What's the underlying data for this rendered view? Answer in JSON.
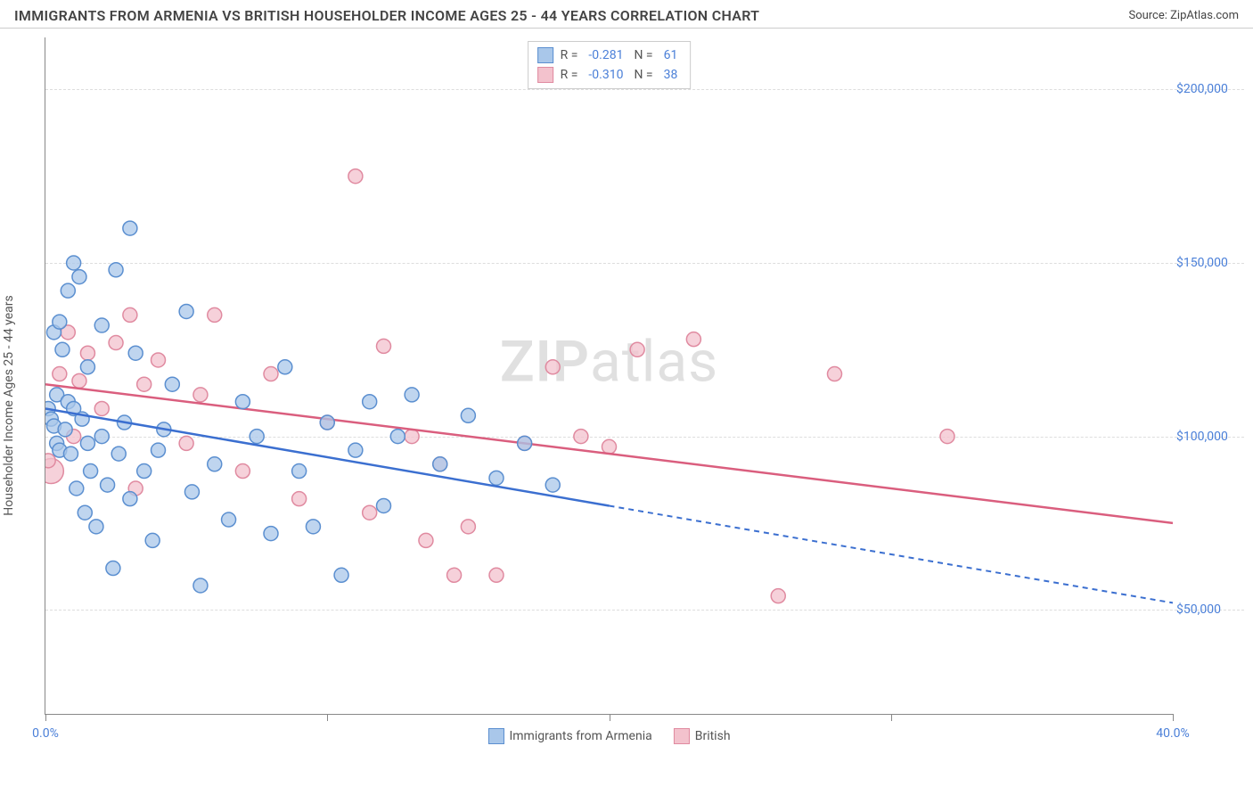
{
  "header": {
    "title": "IMMIGRANTS FROM ARMENIA VS BRITISH HOUSEHOLDER INCOME AGES 25 - 44 YEARS CORRELATION CHART",
    "source_prefix": "Source: ",
    "source_name": "ZipAtlas.com"
  },
  "chart": {
    "type": "scatter",
    "y_axis_label": "Householder Income Ages 25 - 44 years",
    "watermark_bold": "ZIP",
    "watermark_rest": "atlas",
    "xlim": [
      0,
      40
    ],
    "ylim": [
      20000,
      215000
    ],
    "x_ticks": [
      0,
      10,
      20,
      30,
      40
    ],
    "x_tick_labels_shown": {
      "0": "0.0%",
      "40": "40.0%"
    },
    "y_ticks": [
      50000,
      100000,
      150000,
      200000
    ],
    "y_tick_labels": [
      "$50,000",
      "$100,000",
      "$150,000",
      "$200,000"
    ],
    "grid_color": "#dddddd",
    "axis_color": "#888888",
    "background_color": "#ffffff",
    "series": {
      "armenia": {
        "label": "Immigrants from Armenia",
        "marker_fill": "#a9c7ea",
        "marker_stroke": "#5b8fd0",
        "line_color": "#3b6fd0",
        "r_value": "-0.281",
        "n_value": "61",
        "trend_solid": {
          "x1": 0,
          "y1": 108000,
          "x2": 20,
          "y2": 80000
        },
        "trend_dash": {
          "x1": 20,
          "y1": 80000,
          "x2": 40,
          "y2": 52000
        },
        "points": [
          [
            0.1,
            108000
          ],
          [
            0.2,
            105000
          ],
          [
            0.3,
            130000
          ],
          [
            0.3,
            103000
          ],
          [
            0.4,
            98000
          ],
          [
            0.4,
            112000
          ],
          [
            0.5,
            96000
          ],
          [
            0.5,
            133000
          ],
          [
            0.6,
            125000
          ],
          [
            0.7,
            102000
          ],
          [
            0.8,
            110000
          ],
          [
            0.8,
            142000
          ],
          [
            0.9,
            95000
          ],
          [
            1.0,
            150000
          ],
          [
            1.0,
            108000
          ],
          [
            1.1,
            85000
          ],
          [
            1.2,
            146000
          ],
          [
            1.3,
            105000
          ],
          [
            1.4,
            78000
          ],
          [
            1.5,
            98000
          ],
          [
            1.5,
            120000
          ],
          [
            1.6,
            90000
          ],
          [
            1.8,
            74000
          ],
          [
            2.0,
            132000
          ],
          [
            2.0,
            100000
          ],
          [
            2.2,
            86000
          ],
          [
            2.4,
            62000
          ],
          [
            2.5,
            148000
          ],
          [
            2.6,
            95000
          ],
          [
            2.8,
            104000
          ],
          [
            3.0,
            160000
          ],
          [
            3.0,
            82000
          ],
          [
            3.2,
            124000
          ],
          [
            3.5,
            90000
          ],
          [
            3.8,
            70000
          ],
          [
            4.0,
            96000
          ],
          [
            4.2,
            102000
          ],
          [
            4.5,
            115000
          ],
          [
            5.0,
            136000
          ],
          [
            5.2,
            84000
          ],
          [
            5.5,
            57000
          ],
          [
            6.0,
            92000
          ],
          [
            6.5,
            76000
          ],
          [
            7.0,
            110000
          ],
          [
            7.5,
            100000
          ],
          [
            8.0,
            72000
          ],
          [
            8.5,
            120000
          ],
          [
            9.0,
            90000
          ],
          [
            9.5,
            74000
          ],
          [
            10.0,
            104000
          ],
          [
            10.5,
            60000
          ],
          [
            11.0,
            96000
          ],
          [
            11.5,
            110000
          ],
          [
            12.0,
            80000
          ],
          [
            12.5,
            100000
          ],
          [
            13.0,
            112000
          ],
          [
            14.0,
            92000
          ],
          [
            15.0,
            106000
          ],
          [
            16.0,
            88000
          ],
          [
            17.0,
            98000
          ],
          [
            18.0,
            86000
          ]
        ]
      },
      "british": {
        "label": "British",
        "marker_fill": "#f3c2cd",
        "marker_stroke": "#e08aa0",
        "line_color": "#da5e7e",
        "r_value": "-0.310",
        "n_value": "38",
        "trend_solid": {
          "x1": 0,
          "y1": 115000,
          "x2": 40,
          "y2": 75000
        },
        "trend_dash": null,
        "points": [
          [
            0.2,
            90000
          ],
          [
            0.5,
            118000
          ],
          [
            0.8,
            130000
          ],
          [
            1.0,
            100000
          ],
          [
            1.2,
            116000
          ],
          [
            1.5,
            124000
          ],
          [
            2.0,
            108000
          ],
          [
            2.5,
            127000
          ],
          [
            3.0,
            135000
          ],
          [
            3.5,
            115000
          ],
          [
            4.0,
            122000
          ],
          [
            5.0,
            98000
          ],
          [
            5.5,
            112000
          ],
          [
            6.0,
            135000
          ],
          [
            7.0,
            90000
          ],
          [
            8.0,
            118000
          ],
          [
            9.0,
            82000
          ],
          [
            10.0,
            104000
          ],
          [
            11.0,
            175000
          ],
          [
            11.5,
            78000
          ],
          [
            12.0,
            126000
          ],
          [
            13.0,
            100000
          ],
          [
            13.5,
            70000
          ],
          [
            14.0,
            92000
          ],
          [
            15.0,
            74000
          ],
          [
            16.0,
            60000
          ],
          [
            17.0,
            98000
          ],
          [
            18.0,
            120000
          ],
          [
            19.0,
            100000
          ],
          [
            20.0,
            97000
          ],
          [
            21.0,
            125000
          ],
          [
            23.0,
            128000
          ],
          [
            26.0,
            54000
          ],
          [
            28.0,
            118000
          ],
          [
            32.0,
            100000
          ],
          [
            0.1,
            93000
          ],
          [
            3.2,
            85000
          ],
          [
            14.5,
            60000
          ]
        ]
      }
    },
    "marker_radius": 8,
    "marker_radius_large": 14,
    "label_color": "#4a7fd8",
    "text_color": "#555555",
    "title_fontsize": 16,
    "label_fontsize": 14
  },
  "legend_labels": {
    "r_prefix": "R = ",
    "n_prefix": "N = "
  }
}
